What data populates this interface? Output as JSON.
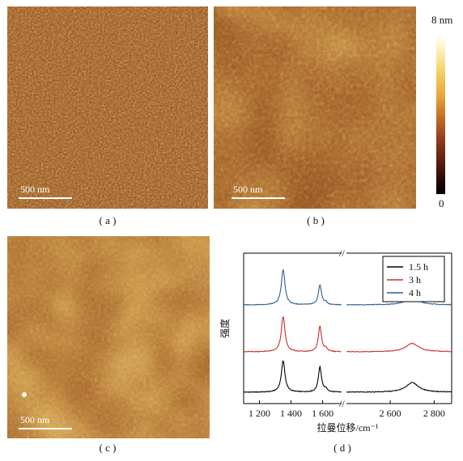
{
  "panels": {
    "a": {
      "caption": "( a )",
      "scalebar": "500 nm"
    },
    "b": {
      "caption": "( b )",
      "scalebar": "500 nm"
    },
    "c": {
      "caption": "( c )",
      "scalebar": "500 nm"
    },
    "d": {
      "caption": "( d )"
    }
  },
  "colorbar": {
    "max_label": "8 nm",
    "min_label": "0"
  },
  "chart_data": {
    "type": "line",
    "ylabel": "强度",
    "xlabel": "拉曼位移/cm⁻¹",
    "x_ticks": [
      "1 200",
      "1 400",
      "1 600",
      "2 600",
      "2 800"
    ],
    "axis_break": "//",
    "series": [
      {
        "name": "1.5 h",
        "color": "#000000",
        "offset": 0,
        "peaks": [
          {
            "x": 1350,
            "y": 0.55
          },
          {
            "x": 1583,
            "y": 0.45
          },
          {
            "x": 2700,
            "y": 0.17
          }
        ]
      },
      {
        "name": "3 h",
        "color": "#c8302c",
        "offset": 1,
        "peaks": [
          {
            "x": 1350,
            "y": 0.62
          },
          {
            "x": 1583,
            "y": 0.45
          },
          {
            "x": 2700,
            "y": 0.15
          }
        ]
      },
      {
        "name": "4 h",
        "color": "#2f5d94",
        "offset": 2,
        "peaks": [
          {
            "x": 1350,
            "y": 0.62
          },
          {
            "x": 1583,
            "y": 0.35
          },
          {
            "x": 2700,
            "y": 0.13
          }
        ]
      }
    ]
  }
}
